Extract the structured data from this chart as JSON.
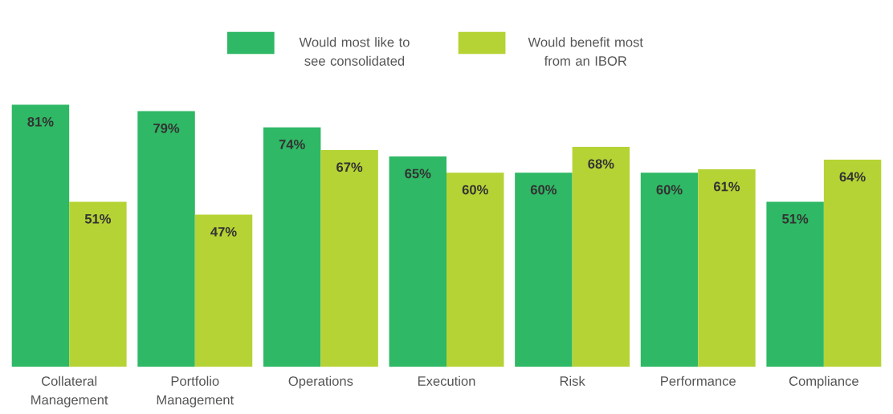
{
  "chart_data": {
    "type": "bar",
    "legend": "top",
    "categories": [
      "Collateral Management",
      "Portfolio Management",
      "Operations",
      "Execution",
      "Risk",
      "Performance",
      "Compliance"
    ],
    "series": [
      {
        "name": "Would most like to see consolidated",
        "color": "#2fb865",
        "values": [
          81,
          79,
          74,
          65,
          60,
          60,
          51
        ],
        "value_labels": [
          "81%",
          "79%",
          "74%",
          "65%",
          "60%",
          "60%",
          "51%"
        ]
      },
      {
        "name": "Would benefit most from an IBOR",
        "color": "#b5d334",
        "values": [
          51,
          47,
          67,
          60,
          68,
          61,
          64
        ],
        "value_labels": [
          "51%",
          "47%",
          "67%",
          "60%",
          "68%",
          "61%",
          "64%"
        ]
      }
    ]
  }
}
